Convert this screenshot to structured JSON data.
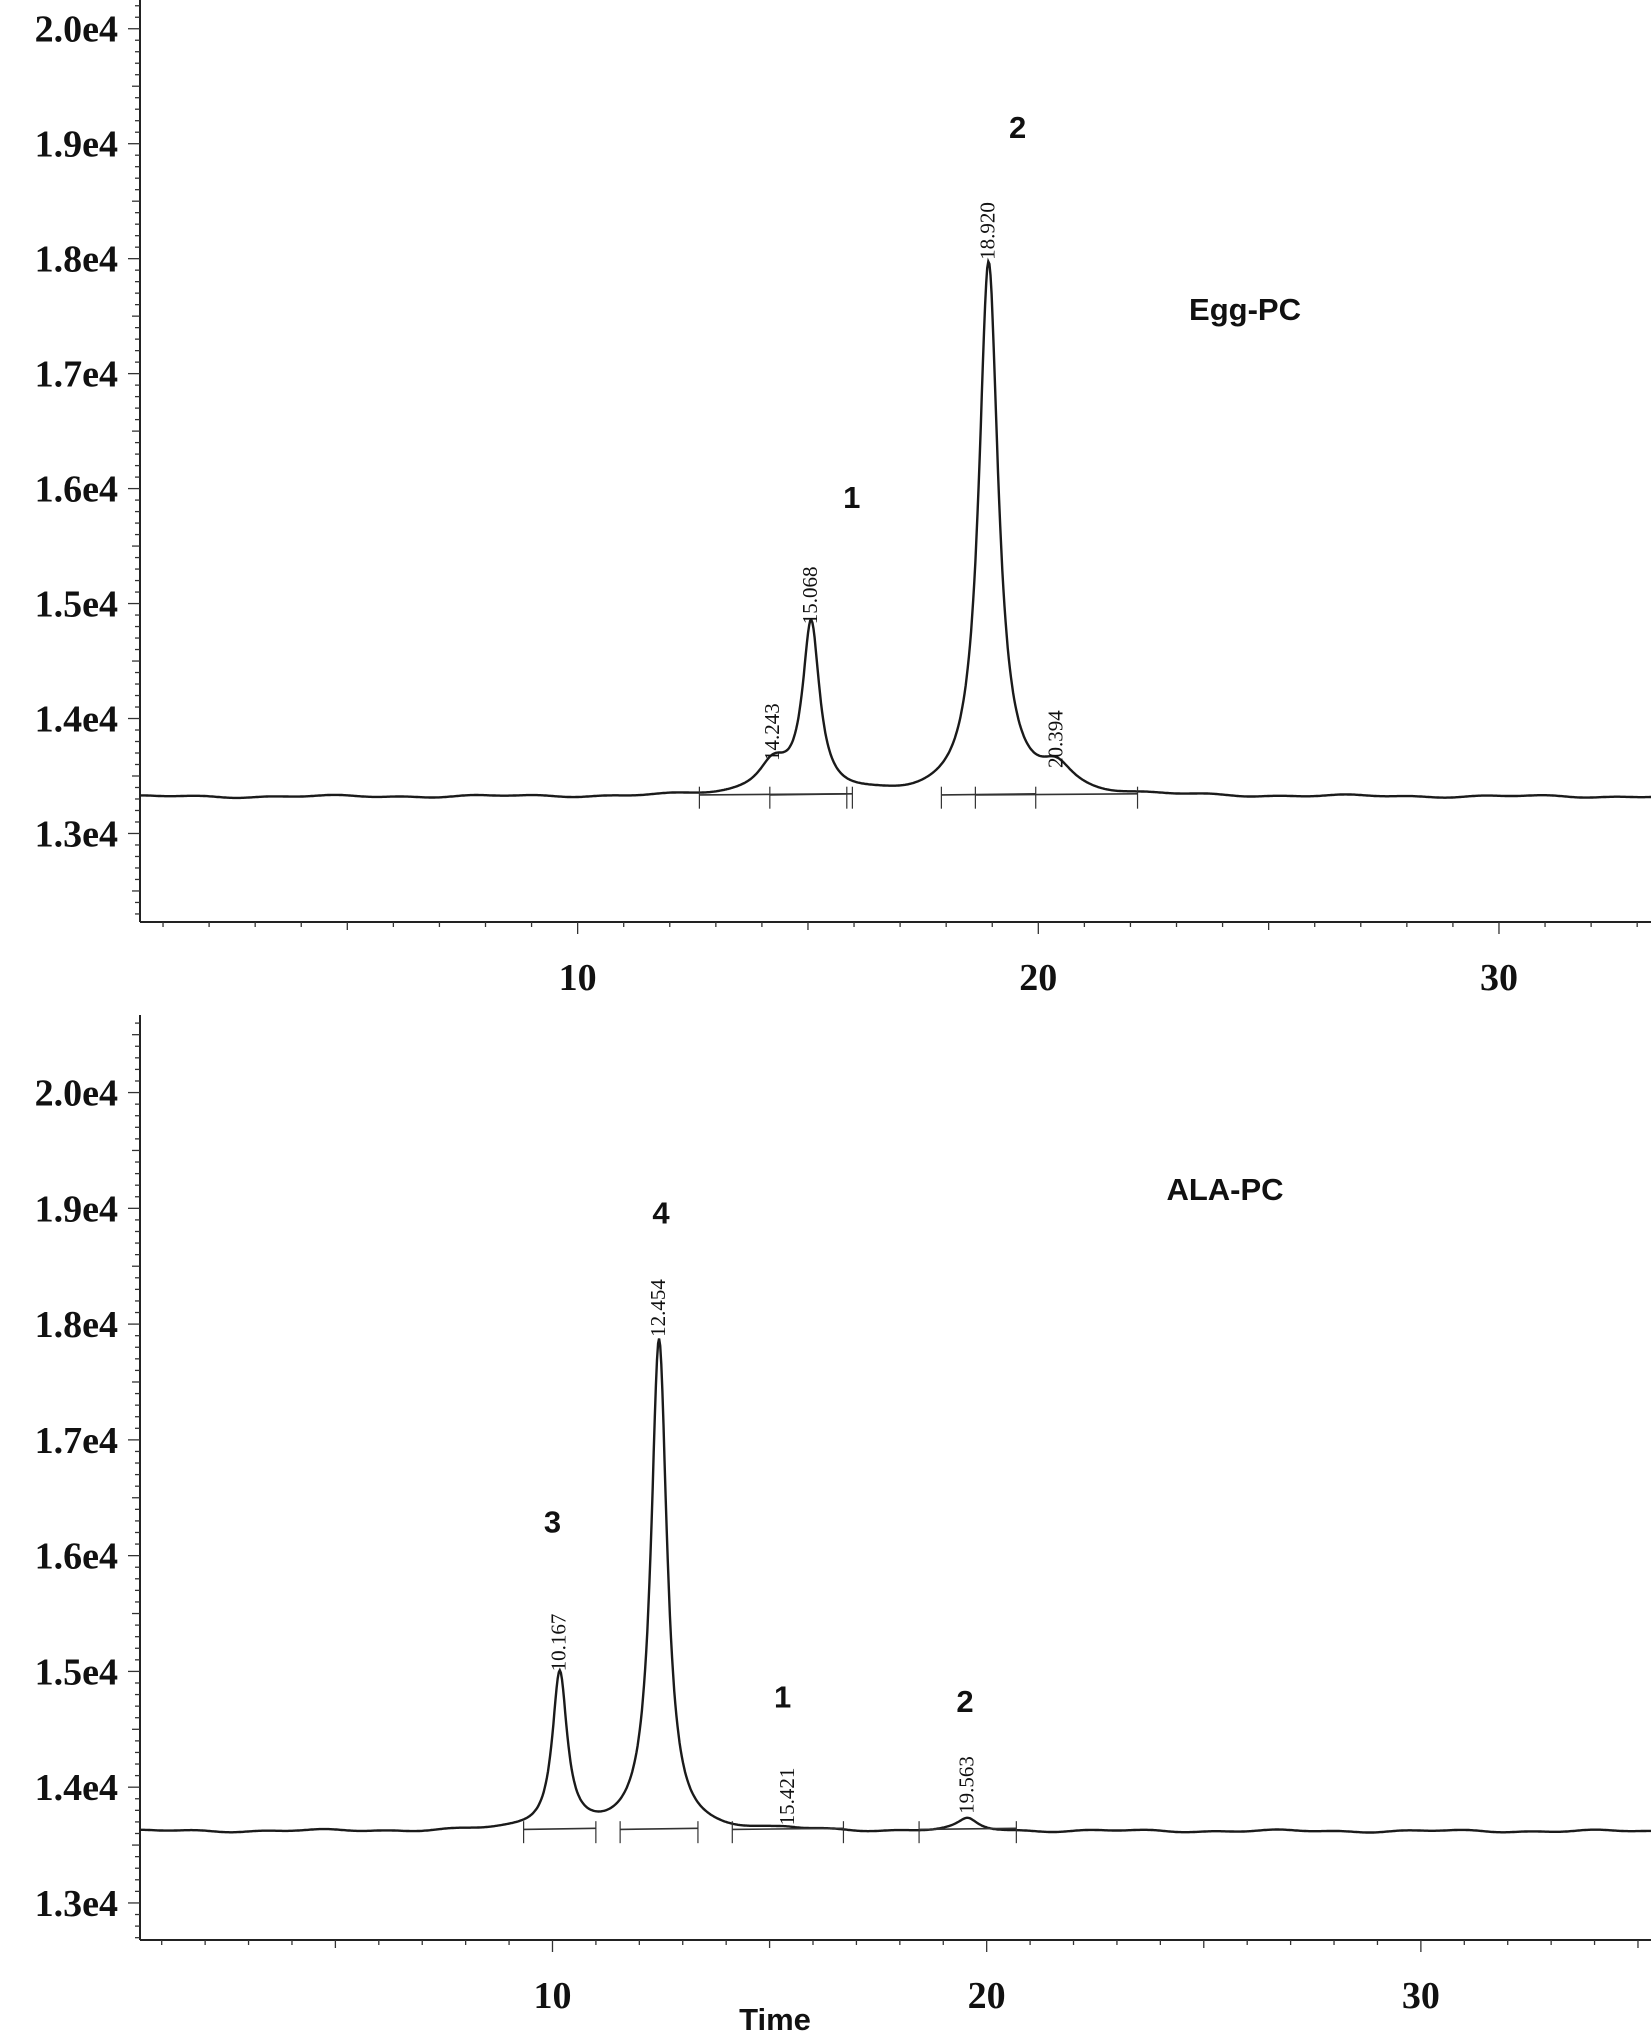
{
  "chart_data": [
    {
      "type": "line",
      "sample_label": "Egg-PC",
      "xlabel": "",
      "ylabel": "",
      "xlim": [
        0.5,
        33.3
      ],
      "ylim": [
        12230,
        20250
      ],
      "x_ticks": [
        10,
        20,
        30
      ],
      "y_ticks": [
        "2.0e4",
        "1.9e4",
        "1.8e4",
        "1.7e4",
        "1.6e4",
        "1.5e4",
        "1.4e4",
        "1.3e4"
      ],
      "y_tick_values": [
        20000,
        19000,
        18000,
        17000,
        16000,
        15000,
        14000,
        13000
      ],
      "grid": false,
      "baseline_level": 13320,
      "series": [
        {
          "peaks": [
            {
              "rt": 14.243,
              "height": 13590,
              "width": 0.5,
              "label_y": 13630
            },
            {
              "rt": 15.068,
              "height": 14780,
              "width": 0.28,
              "label_y": 14820
            },
            {
              "rt": 18.92,
              "height": 17950,
              "width": 0.32,
              "label_y": 17990
            },
            {
              "rt": 20.394,
              "height": 13530,
              "width": 0.55,
              "label_y": 13570
            }
          ]
        }
      ],
      "peak_numbers": [
        {
          "text": "1",
          "x": 15.95,
          "y": 15830
        },
        {
          "text": "2",
          "x": 19.55,
          "y": 19050
        }
      ]
    },
    {
      "type": "line",
      "sample_label": "ALA-PC",
      "xlabel": "Time",
      "ylabel": "",
      "xlim": [
        0.5,
        35.3
      ],
      "ylim": [
        12680,
        20670
      ],
      "x_ticks": [
        10,
        20,
        30
      ],
      "y_ticks": [
        "2.0e4",
        "1.9e4",
        "1.8e4",
        "1.7e4",
        "1.6e4",
        "1.5e4",
        "1.4e4",
        "1.3e4"
      ],
      "y_tick_values": [
        20000,
        19000,
        18000,
        17000,
        16000,
        15000,
        14000,
        13000
      ],
      "grid": false,
      "baseline_level": 13620,
      "series": [
        {
          "peaks": [
            {
              "rt": 10.167,
              "height": 14980,
              "width": 0.26,
              "label_y": 15000
            },
            {
              "rt": 12.454,
              "height": 17860,
              "width": 0.28,
              "label_y": 17890
            },
            {
              "rt": 15.421,
              "height": 13630,
              "width": 0.4,
              "label_y": 13670
            },
            {
              "rt": 19.563,
              "height": 13720,
              "width": 0.35,
              "label_y": 13770
            }
          ]
        }
      ],
      "peak_numbers": [
        {
          "text": "3",
          "x": 10.0,
          "y": 16200
        },
        {
          "text": "4",
          "x": 12.5,
          "y": 18870
        },
        {
          "text": "1",
          "x": 15.3,
          "y": 14690
        },
        {
          "text": "2",
          "x": 19.5,
          "y": 14650
        }
      ]
    }
  ]
}
